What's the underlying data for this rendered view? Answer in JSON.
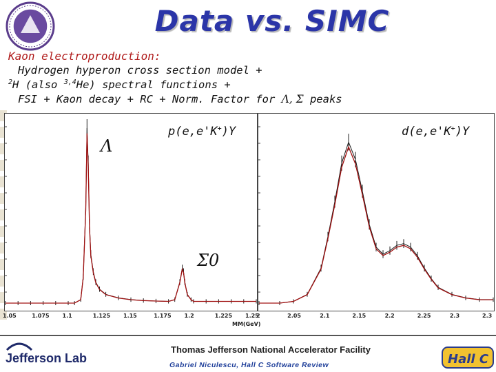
{
  "slide": {
    "title": "Data vs. SIMC",
    "lines": {
      "head": "Kaon electroproduction:",
      "l1": "Hydrogen hyperon cross section model +",
      "l2_a": "2",
      "l2_b": "H (also ",
      "l2_c": "3,4",
      "l2_d": "He) spectral functions +",
      "l3": "FSI + Kaon decay + RC + Norm. Factor for ",
      "l3_greek": "Λ, Σ",
      "l3_end": " peaks"
    },
    "footer": {
      "lab_name": "Thomas Jefferson National Accelerator Facility",
      "credit": "Gabriel Niculescu, Hall C Software Review",
      "jlab_logo_text": "Jefferson Lab",
      "hallc_logo_text": "Hall C"
    }
  },
  "chart_data": [
    {
      "type": "line",
      "label_reaction": "p(e,e'K",
      "label_sup": "+",
      "label_end": ")Y",
      "annotations": [
        "Λ",
        "Σ0"
      ],
      "xlabel": "MM(GeV)",
      "x_ticks": [
        "1.05",
        "1.075",
        "1.1",
        "1.125",
        "1.15",
        "1.175",
        "1.2",
        "1.225",
        "1.25"
      ],
      "xlim": [
        1.05,
        1.25
      ],
      "series": [
        {
          "color": "#a01010",
          "x": [
            1.05,
            1.06,
            1.07,
            1.08,
            1.09,
            1.1,
            1.105,
            1.11,
            1.112,
            1.114,
            1.115,
            1.116,
            1.117,
            1.118,
            1.12,
            1.122,
            1.125,
            1.13,
            1.14,
            1.15,
            1.16,
            1.17,
            1.18,
            1.185,
            1.189,
            1.191,
            1.192,
            1.193,
            1.195,
            1.198,
            1.2,
            1.21,
            1.22,
            1.23,
            1.24,
            1.25
          ],
          "values": [
            0,
            0,
            0,
            0,
            0,
            0,
            0,
            0.02,
            0.15,
            0.55,
            1.0,
            0.8,
            0.45,
            0.28,
            0.18,
            0.12,
            0.08,
            0.05,
            0.03,
            0.02,
            0.015,
            0.012,
            0.01,
            0.02,
            0.12,
            0.2,
            0.18,
            0.12,
            0.05,
            0.02,
            0.01,
            0.01,
            0.01,
            0.01,
            0.01,
            0.01
          ]
        }
      ]
    },
    {
      "type": "line",
      "label_reaction": "d(e,e'K",
      "label_sup": "+",
      "label_end": ")Y",
      "x_ticks": [
        "2",
        "2.05",
        "2.1",
        "2.15",
        "2.2",
        "2.25",
        "2.3",
        "2.3"
      ],
      "xlim": [
        1.97,
        2.31
      ],
      "series": [
        {
          "color": "#a01010",
          "x": [
            1.97,
            2.0,
            2.02,
            2.04,
            2.06,
            2.07,
            2.08,
            2.09,
            2.1,
            2.11,
            2.12,
            2.13,
            2.14,
            2.15,
            2.16,
            2.17,
            2.18,
            2.19,
            2.2,
            2.21,
            2.22,
            2.23,
            2.25,
            2.27,
            2.29,
            2.31
          ],
          "values": [
            0,
            0,
            0.01,
            0.05,
            0.2,
            0.38,
            0.58,
            0.8,
            0.92,
            0.82,
            0.64,
            0.45,
            0.32,
            0.28,
            0.3,
            0.33,
            0.34,
            0.32,
            0.27,
            0.2,
            0.14,
            0.09,
            0.05,
            0.03,
            0.02,
            0.02
          ]
        }
      ]
    }
  ]
}
